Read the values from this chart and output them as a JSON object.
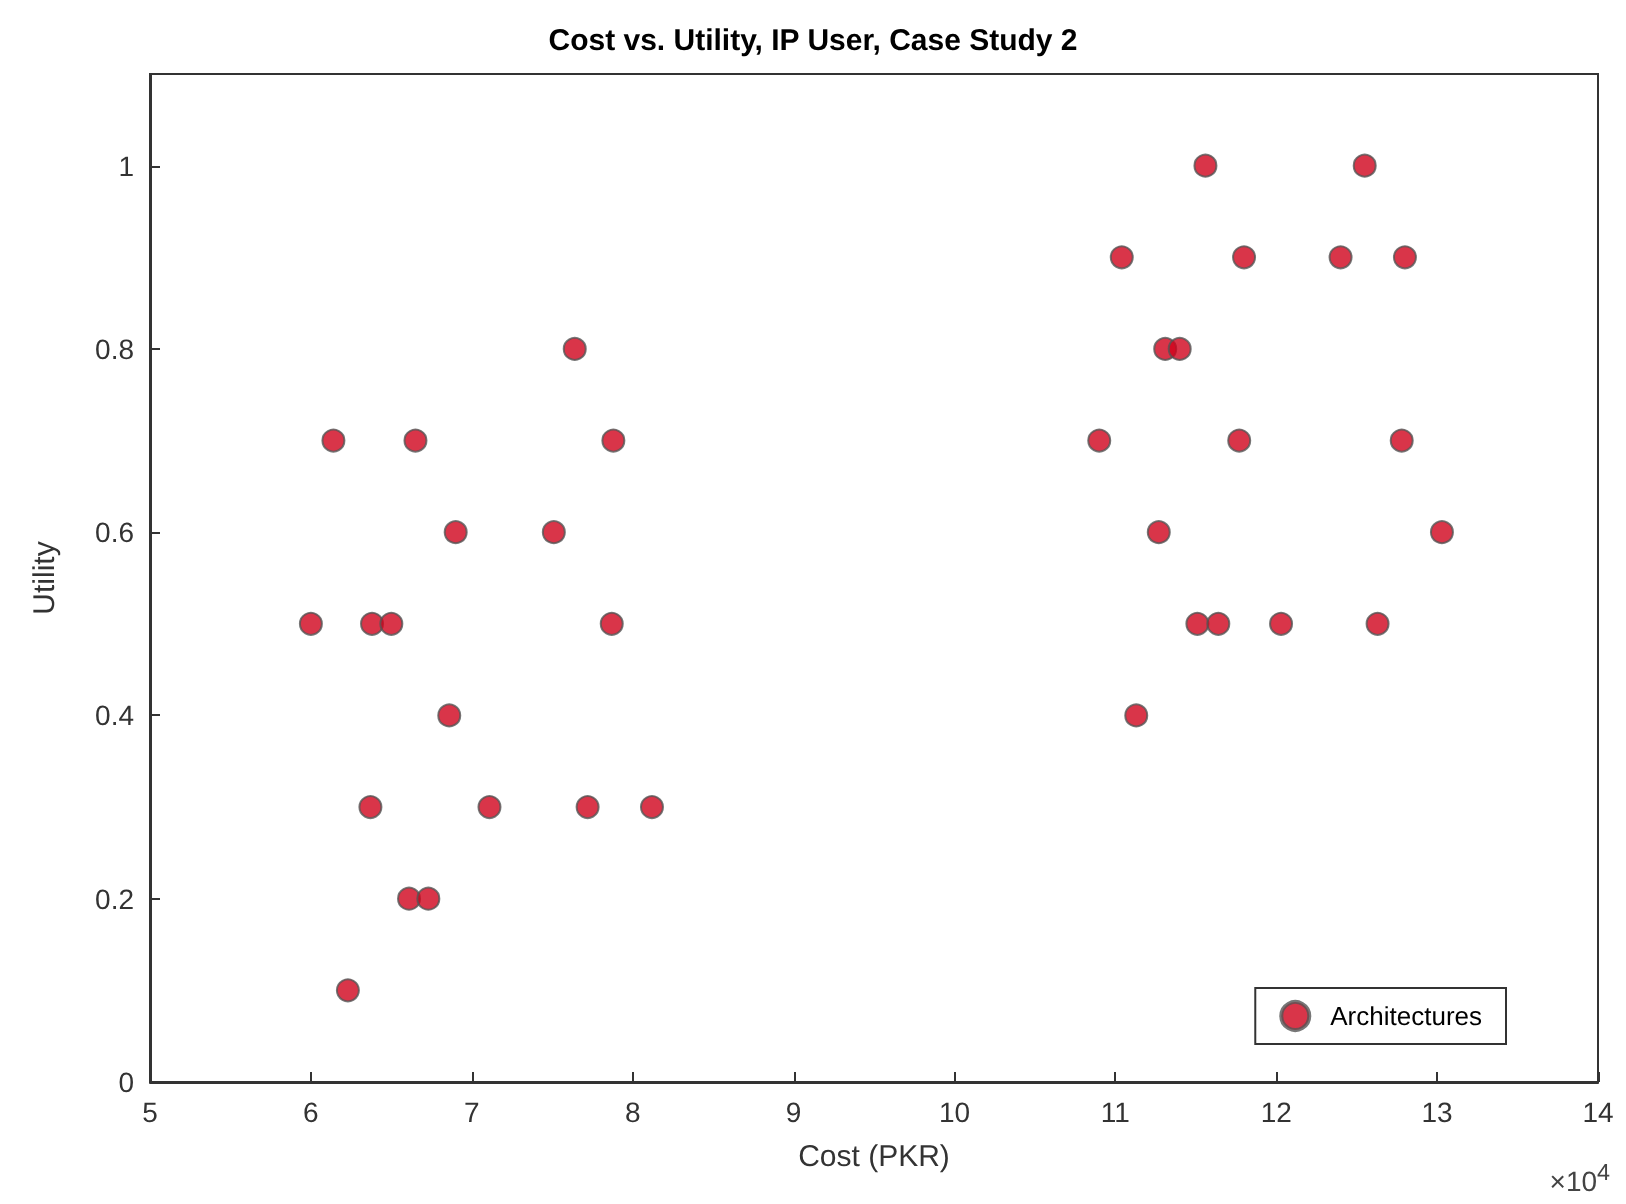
{
  "chart_data": {
    "type": "scatter",
    "title": "Cost vs. Utility, IP User, Case Study 2",
    "xlabel": "Cost (PKR)",
    "ylabel": "Utility",
    "annotations": [
      "×10$^{4}$"
    ],
    "series": [
      {
        "name": "Architectures",
        "color": "#d0021b",
        "x": [
          7.64,
          6.14,
          6.65,
          7.88,
          6.9,
          7.51,
          6.0,
          6.38,
          6.5,
          7.87,
          6.86,
          6.37,
          7.11,
          7.72,
          8.12,
          6.61,
          6.73,
          6.23,
          11.56,
          12.55,
          11.04,
          11.8,
          12.4,
          12.8,
          11.31,
          11.4,
          10.9,
          11.77,
          12.78,
          11.27,
          13.03,
          11.51,
          11.64,
          12.03,
          12.63,
          11.13
        ],
        "values": [
          0.8,
          0.7,
          0.7,
          0.7,
          0.6,
          0.6,
          0.5,
          0.5,
          0.5,
          0.5,
          0.4,
          0.3,
          0.3,
          0.3,
          0.3,
          0.2,
          0.2,
          0.1,
          1.0,
          1.0,
          0.9,
          0.9,
          0.9,
          0.9,
          0.8,
          0.8,
          0.7,
          0.7,
          0.7,
          0.6,
          0.6,
          0.5,
          0.5,
          0.5,
          0.5,
          0.4
        ]
      }
    ],
    "xlim": [
      5,
      14
    ],
    "xticks": [
      5,
      6,
      7,
      8,
      9,
      10,
      11,
      12,
      13,
      14
    ],
    "ylim": [
      0,
      1.1
    ],
    "yticks": [
      0,
      0.2,
      0.4,
      0.6,
      0.8,
      1
    ],
    "grid": false,
    "legend": "bottom right",
    "marker": "circle"
  }
}
